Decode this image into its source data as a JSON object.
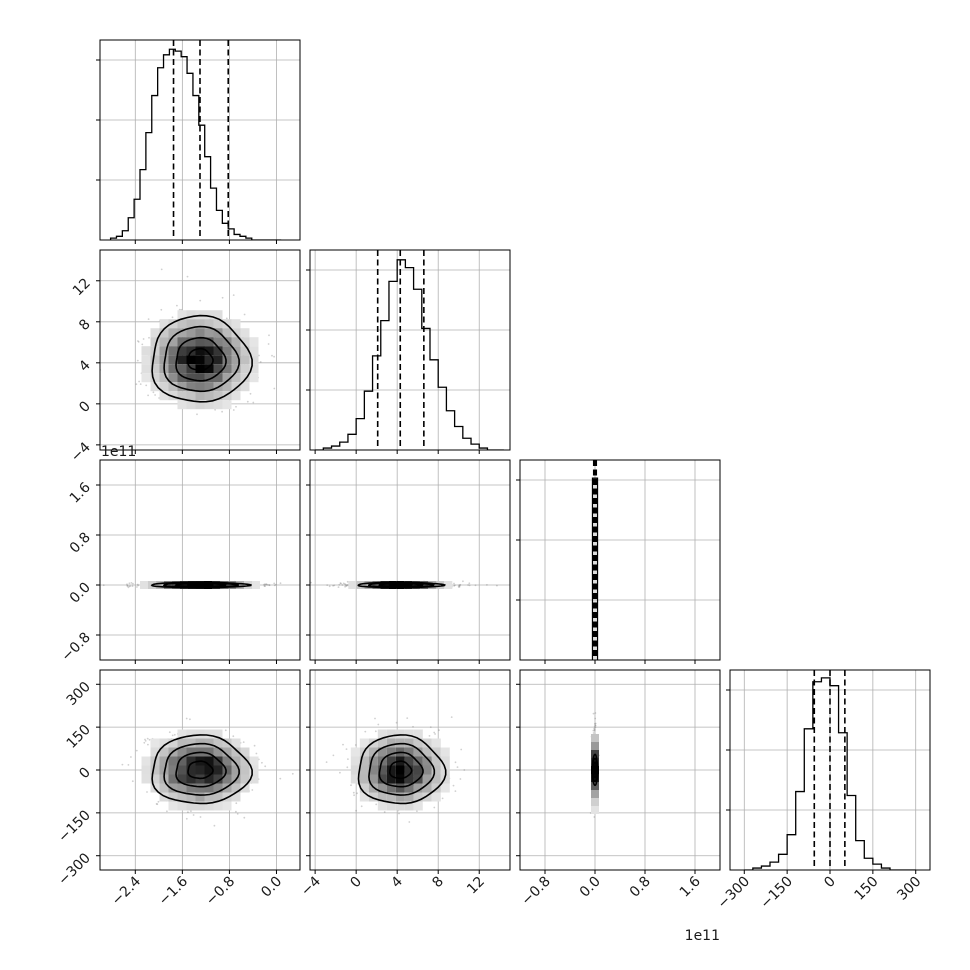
{
  "chart_data": {
    "type": "corner",
    "title": "",
    "parameters": [
      {
        "index": 0,
        "range": [
          -3.0,
          0.4
        ],
        "ticks": [
          -2.4,
          -1.6,
          -0.8,
          0.0
        ],
        "tick_labels": [
          "−2.4",
          "−1.6",
          "−0.8",
          "0.0"
        ],
        "offset_label": "",
        "median": -1.3,
        "quantiles": [
          -1.75,
          -0.82
        ],
        "std": 0.42
      },
      {
        "index": 1,
        "range": [
          -4.5,
          15.0
        ],
        "ticks": [
          -4,
          0,
          4,
          8,
          12
        ],
        "tick_labels": [
          "−4",
          "0",
          "4",
          "8",
          "12"
        ],
        "offset_label": "",
        "median": 4.3,
        "quantiles": [
          2.1,
          6.6
        ],
        "std": 2.1
      },
      {
        "index": 2,
        "range": [
          -1.2,
          2.0
        ],
        "ticks": [
          -0.8,
          0.0,
          0.8,
          1.6
        ],
        "tick_labels": [
          "−0.8",
          "0.0",
          "0.8",
          "1.6"
        ],
        "offset_label": "1e11",
        "median": 0.0,
        "quantiles": [
          -0.02,
          0.02
        ],
        "std": 0.04
      },
      {
        "index": 3,
        "range": [
          -350,
          350
        ],
        "ticks": [
          -300,
          -150,
          0,
          150,
          300
        ],
        "tick_labels": [
          "−300",
          "−150",
          "0",
          "150",
          "300"
        ],
        "offset_label": "",
        "median": 0,
        "quantiles": [
          -55,
          52
        ],
        "std": 60
      }
    ],
    "histograms": [
      {
        "param": 0,
        "bin_edges": [
          -2.82,
          -2.72,
          -2.62,
          -2.52,
          -2.42,
          -2.32,
          -2.22,
          -2.12,
          -2.02,
          -1.92,
          -1.82,
          -1.72,
          -1.62,
          -1.52,
          -1.42,
          -1.32,
          -1.22,
          -1.12,
          -1.02,
          -0.92,
          -0.82,
          -0.72,
          -0.62,
          -0.52,
          -0.42,
          -0.32,
          -0.22,
          -0.12,
          -0.02,
          0.08
        ],
        "counts": [
          1,
          2,
          5,
          12,
          22,
          38,
          58,
          78,
          93,
          100,
          103,
          102,
          99,
          90,
          78,
          62,
          45,
          28,
          16,
          9,
          6,
          3,
          2,
          1,
          0,
          0,
          0,
          0,
          0
        ],
        "ymax": 108
      },
      {
        "param": 1,
        "bin_edges": [
          -4.0,
          -3.2,
          -2.4,
          -1.6,
          -0.8,
          0.0,
          0.8,
          1.6,
          2.4,
          3.2,
          4.0,
          4.8,
          5.6,
          6.4,
          7.2,
          8.0,
          8.8,
          9.6,
          10.4,
          11.2,
          12.0,
          12.8,
          13.6,
          14.4
        ],
        "counts": [
          0,
          1,
          2,
          4,
          8,
          16,
          30,
          48,
          66,
          86,
          97,
          93,
          82,
          62,
          46,
          32,
          20,
          12,
          6,
          3,
          1,
          0,
          0
        ],
        "ymax": 102
      },
      {
        "param": 2,
        "bin_edges": [
          -0.04,
          0.04
        ],
        "counts": [
          100
        ],
        "ymax": 110
      },
      {
        "param": 3,
        "bin_edges": [
          -300,
          -270,
          -240,
          -210,
          -180,
          -150,
          -120,
          -90,
          -60,
          -30,
          0,
          30,
          60,
          90,
          120,
          150,
          180,
          210,
          240,
          270,
          300
        ],
        "counts": [
          0,
          1,
          2,
          4,
          8,
          18,
          40,
          72,
          96,
          98,
          94,
          70,
          38,
          15,
          6,
          3,
          1,
          0,
          0,
          0
        ],
        "ymax": 102
      }
    ],
    "contour_pairs": [
      {
        "x_param": 0,
        "y_param": 1,
        "center": [
          -1.3,
          4.3
        ],
        "shape": "ellipse"
      },
      {
        "x_param": 0,
        "y_param": 2,
        "center": [
          -1.3,
          0.0
        ],
        "shape": "thin-horizontal"
      },
      {
        "x_param": 1,
        "y_param": 2,
        "center": [
          4.3,
          0.0
        ],
        "shape": "thin-horizontal"
      },
      {
        "x_param": 0,
        "y_param": 3,
        "center": [
          -1.3,
          0
        ],
        "shape": "ellipse"
      },
      {
        "x_param": 1,
        "y_param": 3,
        "center": [
          4.3,
          0
        ],
        "shape": "ellipse"
      },
      {
        "x_param": 2,
        "y_param": 3,
        "center": [
          0.0,
          0
        ],
        "shape": "thin-vertical"
      }
    ],
    "grid": true,
    "legend": "none"
  }
}
